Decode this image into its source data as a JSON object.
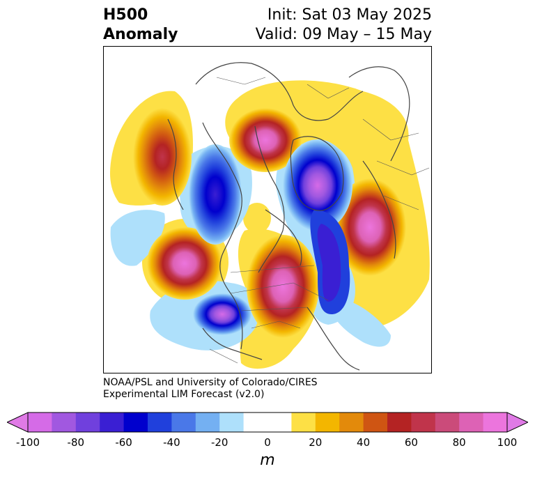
{
  "header": {
    "field": "H500",
    "subfield": "Anomaly",
    "init": "Init: Sat 03 May 2025",
    "valid": "Valid: 09 May – 15 May"
  },
  "credit": {
    "line1": "NOAA/PSL and University of Colorado/CIRES",
    "line2": "Experimental LIM Forecast (v2.0)"
  },
  "colorbar": {
    "unit": "m",
    "ticks": [
      "-100",
      "-80",
      "-60",
      "-40",
      "-20",
      "0",
      "20",
      "40",
      "60",
      "80",
      "100"
    ],
    "colors": [
      "#d56be7",
      "#a158e0",
      "#7040dd",
      "#3a1fd3",
      "#0000cd",
      "#2040dc",
      "#4a78e8",
      "#74b0f2",
      "#aee0fb",
      "#ffffff",
      "#ffffff",
      "#fde045",
      "#f3b600",
      "#e38a0b",
      "#cf5513",
      "#b42323",
      "#c0344b",
      "#cb4b7a",
      "#dd62b5",
      "#ec75dd"
    ],
    "under_color": "#e07ae6",
    "over_color": "#e07ae6"
  }
}
